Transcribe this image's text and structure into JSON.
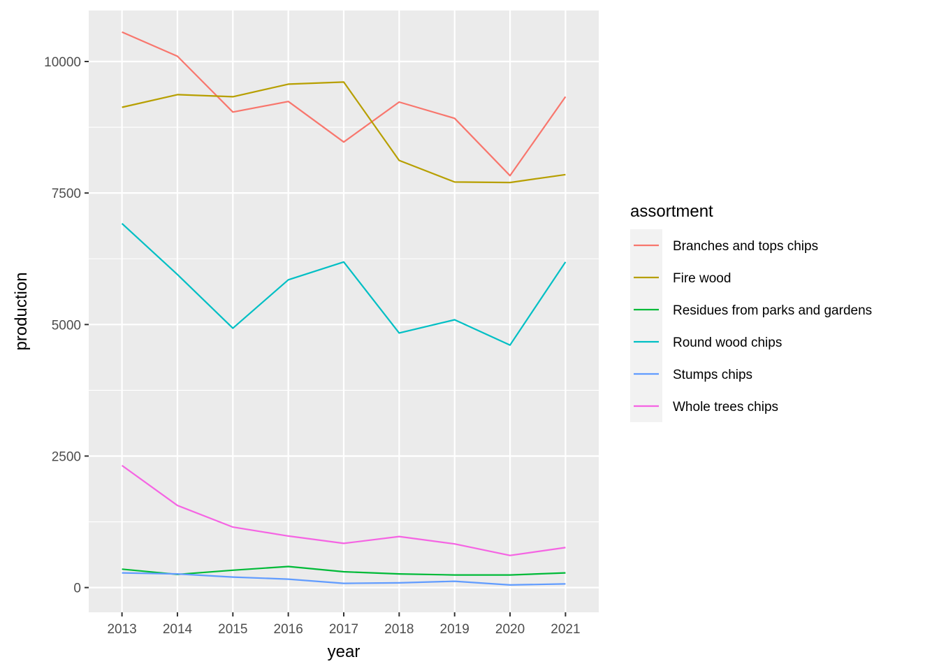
{
  "chart_data": {
    "type": "line",
    "xlabel": "year",
    "ylabel": "production",
    "x": [
      2013,
      2014,
      2015,
      2016,
      2017,
      2018,
      2019,
      2020,
      2021
    ],
    "xlim": [
      2012.4,
      2021.6
    ],
    "ylim": [
      -470,
      10970
    ],
    "y_ticks": [
      0,
      2500,
      5000,
      7500,
      10000
    ],
    "y_tick_labels": [
      "0",
      "2500",
      "5000",
      "7500",
      "10000"
    ],
    "x_tick_labels": [
      "2013",
      "2014",
      "2015",
      "2016",
      "2017",
      "2018",
      "2019",
      "2020",
      "2021"
    ],
    "grid": true,
    "legend": {
      "title": "assortment",
      "position": "right"
    },
    "series": [
      {
        "name": "Branches and tops chips",
        "color": "#F8766D",
        "values": [
          10560,
          10100,
          9040,
          9240,
          8470,
          9230,
          8920,
          7830,
          9330
        ]
      },
      {
        "name": "Fire wood",
        "color": "#B79F00",
        "values": [
          9130,
          9370,
          9330,
          9570,
          9610,
          8120,
          7710,
          7700,
          7850
        ]
      },
      {
        "name": "Residues from parks and gardens",
        "color": "#00BA38",
        "values": [
          350,
          250,
          330,
          400,
          300,
          260,
          240,
          240,
          280
        ]
      },
      {
        "name": "Round wood chips",
        "color": "#00BFC4",
        "values": [
          6920,
          5950,
          4930,
          5850,
          6190,
          4840,
          5090,
          4610,
          6190
        ]
      },
      {
        "name": "Stumps chips",
        "color": "#619CFF",
        "values": [
          280,
          260,
          200,
          160,
          80,
          90,
          120,
          50,
          70
        ]
      },
      {
        "name": "Whole trees chips",
        "color": "#F564E3",
        "values": [
          2320,
          1560,
          1150,
          980,
          840,
          970,
          830,
          610,
          760
        ]
      }
    ]
  }
}
